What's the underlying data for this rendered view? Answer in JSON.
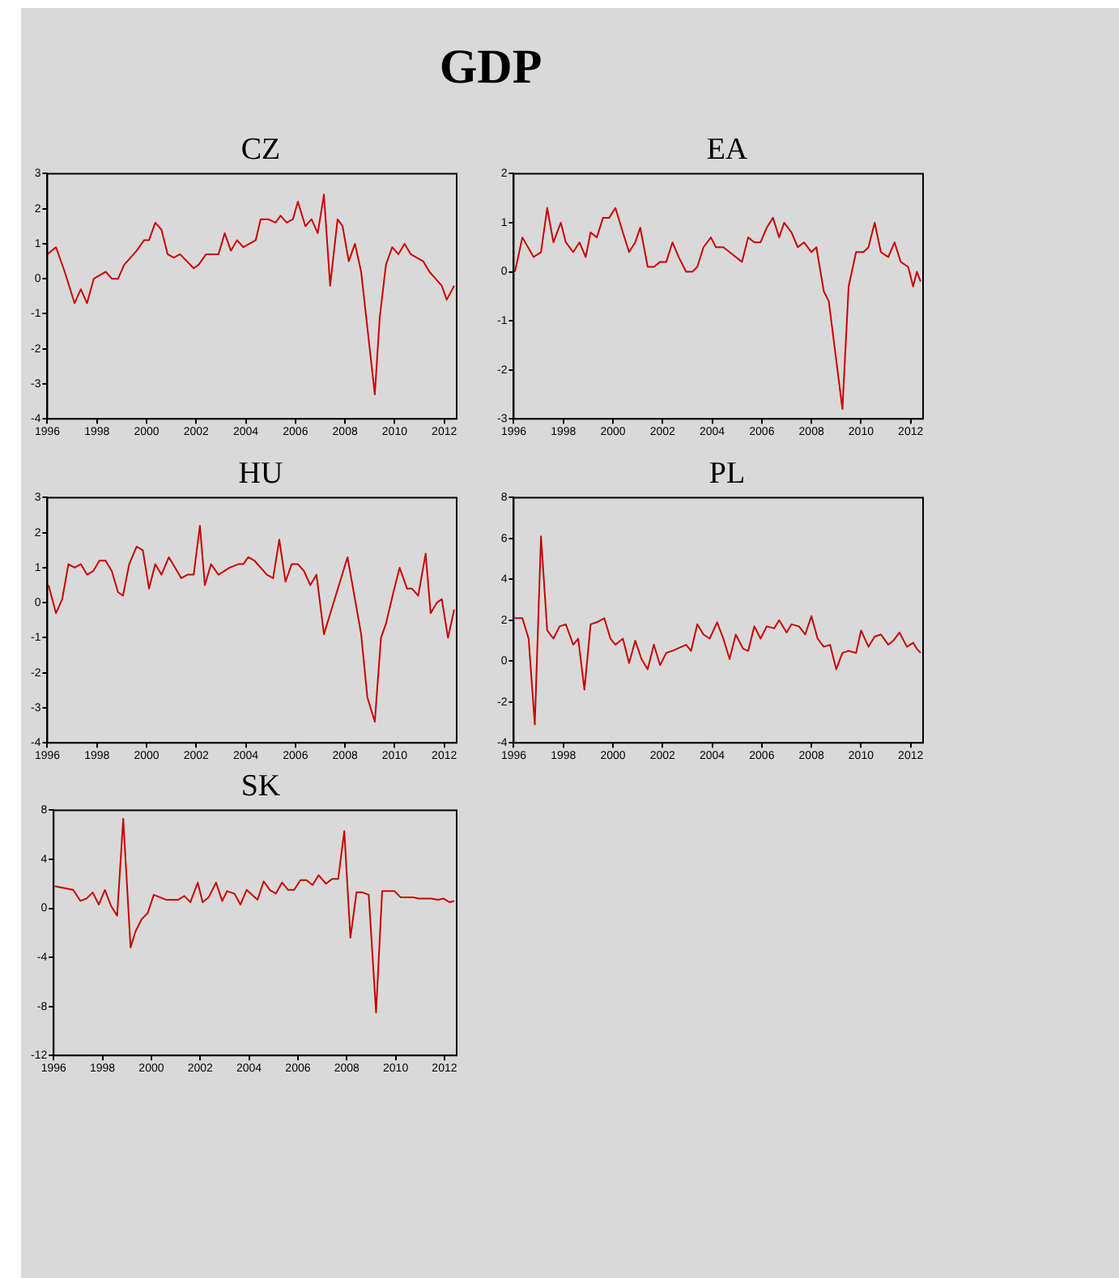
{
  "chart_data": [
    {
      "type": "other",
      "title": "GDP"
    },
    {
      "type": "line",
      "title": "CZ",
      "xlim": [
        1996,
        2012.5
      ],
      "xticks": [
        1996,
        1998,
        2000,
        2002,
        2004,
        2006,
        2008,
        2010,
        2012
      ],
      "ylim": [
        -4,
        3
      ],
      "yticks": [
        -4,
        -3,
        -2,
        -1,
        0,
        1,
        2,
        3
      ],
      "grid": false,
      "legend": false,
      "marker": "none",
      "line_style": "solid",
      "x": [
        1996.0,
        1996.35,
        1996.7,
        1997.1,
        1997.35,
        1997.6,
        1997.87,
        1998.35,
        1998.6,
        1998.85,
        1999.1,
        1999.6,
        1999.9,
        2000.1,
        2000.35,
        2000.6,
        2000.85,
        2001.1,
        2001.35,
        2001.9,
        2002.1,
        2002.4,
        2002.9,
        2003.15,
        2003.4,
        2003.65,
        2003.9,
        2004.4,
        2004.6,
        2004.9,
        2005.2,
        2005.4,
        2005.65,
        2005.9,
        2006.1,
        2006.4,
        2006.65,
        2006.9,
        2007.15,
        2007.4,
        2007.7,
        2007.9,
        2008.15,
        2008.4,
        2008.65,
        2009.2,
        2009.4,
        2009.65,
        2009.9,
        2010.15,
        2010.4,
        2010.65,
        2011.15,
        2011.4,
        2011.65,
        2011.9,
        2012.1,
        2012.4
      ],
      "series": [
        {
          "color": "#cc0000",
          "values": [
            0.7,
            0.9,
            0.2,
            -0.7,
            -0.3,
            -0.7,
            0.0,
            0.2,
            0.0,
            0.0,
            0.4,
            0.8,
            1.1,
            1.1,
            1.6,
            1.4,
            0.7,
            0.6,
            0.7,
            0.3,
            0.4,
            0.7,
            0.7,
            1.3,
            0.8,
            1.1,
            0.9,
            1.1,
            1.7,
            1.7,
            1.6,
            1.8,
            1.6,
            1.7,
            2.2,
            1.5,
            1.7,
            1.3,
            2.4,
            -0.2,
            1.7,
            1.5,
            0.5,
            1.0,
            0.2,
            -3.3,
            -1.1,
            0.4,
            0.9,
            0.7,
            1.0,
            0.7,
            0.5,
            0.2,
            0.0,
            -0.2,
            -0.6,
            -0.2
          ]
        }
      ]
    },
    {
      "type": "line",
      "title": "EA",
      "xlim": [
        1996,
        2012.5
      ],
      "xticks": [
        1996,
        1998,
        2000,
        2002,
        2004,
        2006,
        2008,
        2010,
        2012
      ],
      "ylim": [
        -3,
        2
      ],
      "yticks": [
        -3,
        -2,
        -1,
        0,
        1,
        2
      ],
      "grid": false,
      "legend": false,
      "marker": "none",
      "line_style": "solid",
      "x": [
        1996.05,
        1996.35,
        1996.8,
        1997.1,
        1997.35,
        1997.6,
        1997.9,
        1998.1,
        1998.4,
        1998.65,
        1998.9,
        1999.1,
        1999.35,
        1999.6,
        1999.85,
        2000.1,
        2000.4,
        2000.65,
        2000.9,
        2001.1,
        2001.4,
        2001.65,
        2001.9,
        2002.15,
        2002.4,
        2002.65,
        2002.95,
        2003.2,
        2003.4,
        2003.65,
        2003.95,
        2004.15,
        2004.45,
        2004.7,
        2005.2,
        2005.45,
        2005.7,
        2005.95,
        2006.2,
        2006.45,
        2006.7,
        2006.9,
        2007.2,
        2007.45,
        2007.7,
        2008.0,
        2008.2,
        2008.5,
        2008.7,
        2009.25,
        2009.5,
        2009.8,
        2010.1,
        2010.3,
        2010.55,
        2010.8,
        2011.1,
        2011.35,
        2011.6,
        2011.9,
        2012.1,
        2012.25,
        2012.4
      ],
      "series": [
        {
          "color": "#cc0000",
          "values": [
            0.0,
            0.7,
            0.3,
            0.4,
            1.3,
            0.6,
            1.0,
            0.6,
            0.4,
            0.6,
            0.3,
            0.8,
            0.7,
            1.1,
            1.1,
            1.3,
            0.8,
            0.4,
            0.6,
            0.9,
            0.1,
            0.1,
            0.2,
            0.2,
            0.6,
            0.3,
            0.0,
            0.0,
            0.1,
            0.5,
            0.7,
            0.5,
            0.5,
            0.4,
            0.2,
            0.7,
            0.6,
            0.6,
            0.9,
            1.1,
            0.7,
            1.0,
            0.8,
            0.5,
            0.6,
            0.4,
            0.5,
            -0.4,
            -0.6,
            -2.8,
            -0.3,
            0.4,
            0.4,
            0.5,
            1.0,
            0.4,
            0.3,
            0.6,
            0.2,
            0.1,
            -0.3,
            0.0,
            -0.2
          ]
        }
      ]
    },
    {
      "type": "line",
      "title": "HU",
      "xlim": [
        1996,
        2012.5
      ],
      "xticks": [
        1996,
        1998,
        2000,
        2002,
        2004,
        2006,
        2008,
        2010,
        2012
      ],
      "ylim": [
        -4,
        3
      ],
      "yticks": [
        -4,
        -3,
        -2,
        -1,
        0,
        1,
        2,
        3
      ],
      "grid": false,
      "legend": false,
      "marker": "none",
      "line_style": "solid",
      "x": [
        1996.05,
        1996.35,
        1996.6,
        1996.85,
        1997.1,
        1997.35,
        1997.6,
        1997.85,
        1998.1,
        1998.35,
        1998.6,
        1998.85,
        1999.05,
        1999.3,
        1999.6,
        1999.85,
        2000.1,
        2000.35,
        2000.6,
        2000.9,
        2001.4,
        2001.65,
        2001.9,
        2002.15,
        2002.35,
        2002.6,
        2002.9,
        2003.35,
        2003.7,
        2003.9,
        2004.1,
        2004.35,
        2004.85,
        2005.1,
        2005.35,
        2005.6,
        2005.85,
        2006.1,
        2006.35,
        2006.6,
        2006.85,
        2007.15,
        2008.1,
        2008.65,
        2008.9,
        2009.2,
        2009.45,
        2009.65,
        2009.95,
        2010.2,
        2010.5,
        2010.7,
        2010.95,
        2011.25,
        2011.45,
        2011.7,
        2011.9,
        2012.15,
        2012.4
      ],
      "series": [
        {
          "color": "#cc0000",
          "values": [
            0.5,
            -0.3,
            0.1,
            1.1,
            1.0,
            1.1,
            0.8,
            0.9,
            1.2,
            1.2,
            0.9,
            0.3,
            0.2,
            1.1,
            1.6,
            1.5,
            0.4,
            1.1,
            0.8,
            1.3,
            0.7,
            0.8,
            0.8,
            2.2,
            0.5,
            1.1,
            0.8,
            1.0,
            1.1,
            1.1,
            1.3,
            1.2,
            0.8,
            0.7,
            1.8,
            0.6,
            1.1,
            1.1,
            0.9,
            0.5,
            0.8,
            -0.9,
            1.3,
            -0.9,
            -2.7,
            -3.4,
            -1.0,
            -0.6,
            0.3,
            1.0,
            0.4,
            0.4,
            0.2,
            1.4,
            -0.3,
            0.0,
            0.1,
            -1.0,
            -0.2
          ]
        }
      ]
    },
    {
      "type": "line",
      "title": "PL",
      "xlim": [
        1996,
        2012.5
      ],
      "xticks": [
        1996,
        1998,
        2000,
        2002,
        2004,
        2006,
        2008,
        2010,
        2012
      ],
      "ylim": [
        -4,
        8
      ],
      "yticks": [
        -4,
        -2,
        0,
        2,
        4,
        6,
        8
      ],
      "grid": false,
      "legend": false,
      "marker": "none",
      "line_style": "solid",
      "x": [
        1996.05,
        1996.35,
        1996.6,
        1996.85,
        1997.1,
        1997.35,
        1997.6,
        1997.85,
        1998.1,
        1998.4,
        1998.6,
        1998.85,
        1999.1,
        1999.35,
        1999.65,
        1999.9,
        2000.1,
        2000.4,
        2000.65,
        2000.9,
        2001.15,
        2001.4,
        2001.65,
        2001.9,
        2002.15,
        2002.4,
        2002.95,
        2003.15,
        2003.4,
        2003.65,
        2003.9,
        2004.2,
        2004.45,
        2004.7,
        2004.95,
        2005.25,
        2005.45,
        2005.7,
        2005.95,
        2006.2,
        2006.5,
        2006.7,
        2007.0,
        2007.2,
        2007.5,
        2007.75,
        2008.0,
        2008.25,
        2008.5,
        2008.75,
        2009.0,
        2009.25,
        2009.5,
        2009.8,
        2010.0,
        2010.3,
        2010.55,
        2010.8,
        2011.1,
        2011.3,
        2011.55,
        2011.85,
        2012.1,
        2012.25,
        2012.4
      ],
      "series": [
        {
          "color": "#cc0000",
          "values": [
            2.1,
            2.1,
            1.1,
            -3.1,
            6.1,
            1.5,
            1.1,
            1.7,
            1.8,
            0.8,
            1.1,
            -1.4,
            1.8,
            1.9,
            2.1,
            1.1,
            0.8,
            1.1,
            -0.1,
            1.0,
            0.1,
            -0.4,
            0.8,
            -0.2,
            0.4,
            0.5,
            0.8,
            0.5,
            1.8,
            1.3,
            1.1,
            1.9,
            1.1,
            0.1,
            1.3,
            0.6,
            0.5,
            1.7,
            1.1,
            1.7,
            1.6,
            2.0,
            1.4,
            1.8,
            1.7,
            1.3,
            2.2,
            1.1,
            0.7,
            0.8,
            -0.4,
            0.4,
            0.5,
            0.4,
            1.5,
            0.7,
            1.2,
            1.3,
            0.8,
            1.0,
            1.4,
            0.7,
            0.9,
            0.6,
            0.4
          ]
        }
      ]
    },
    {
      "type": "line",
      "title": "SK",
      "xlim": [
        1996,
        2012.5
      ],
      "xticks": [
        1996,
        1998,
        2000,
        2002,
        2004,
        2006,
        2008,
        2010,
        2012
      ],
      "ylim": [
        -12,
        8
      ],
      "yticks": [
        -12,
        -8,
        -4,
        0,
        4,
        8
      ],
      "grid": false,
      "legend": false,
      "marker": "none",
      "line_style": "solid",
      "x": [
        1996.05,
        1996.8,
        1997.1,
        1997.35,
        1997.6,
        1997.85,
        1998.1,
        1998.35,
        1998.6,
        1998.85,
        1999.15,
        1999.35,
        1999.6,
        1999.85,
        2000.1,
        2000.35,
        2000.6,
        2001.1,
        2001.35,
        2001.6,
        2001.9,
        2002.1,
        2002.35,
        2002.65,
        2002.9,
        2003.1,
        2003.4,
        2003.65,
        2003.9,
        2004.35,
        2004.6,
        2004.85,
        2005.1,
        2005.35,
        2005.6,
        2005.85,
        2006.1,
        2006.35,
        2006.6,
        2006.85,
        2007.15,
        2007.4,
        2007.65,
        2007.9,
        2008.15,
        2008.4,
        2008.65,
        2008.9,
        2009.2,
        2009.45,
        2009.95,
        2010.2,
        2010.7,
        2010.95,
        2011.45,
        2011.75,
        2011.95,
        2012.2,
        2012.4
      ],
      "series": [
        {
          "color": "#cc0000",
          "values": [
            1.8,
            1.5,
            0.6,
            0.8,
            1.3,
            0.3,
            1.5,
            0.2,
            -0.6,
            7.3,
            -3.2,
            -1.9,
            -0.9,
            -0.4,
            1.1,
            0.9,
            0.7,
            0.7,
            1.0,
            0.5,
            2.1,
            0.5,
            0.9,
            2.1,
            0.6,
            1.4,
            1.2,
            0.3,
            1.5,
            0.7,
            2.2,
            1.5,
            1.2,
            2.1,
            1.5,
            1.5,
            2.3,
            2.3,
            1.9,
            2.7,
            2.0,
            2.4,
            2.4,
            6.3,
            -2.4,
            1.3,
            1.3,
            1.1,
            -8.5,
            1.4,
            1.4,
            0.9,
            0.9,
            0.8,
            0.8,
            0.7,
            0.8,
            0.5,
            0.6
          ]
        }
      ]
    }
  ]
}
